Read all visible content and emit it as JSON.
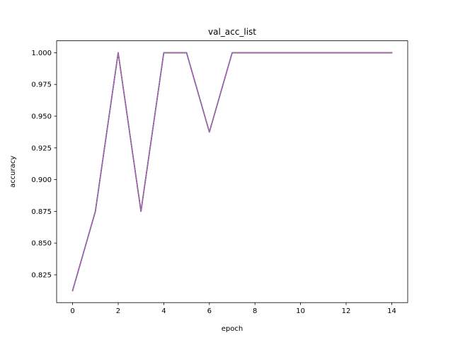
{
  "chart_data": {
    "type": "line",
    "title": "val_acc_list",
    "xlabel": "epoch",
    "ylabel": "accuracy",
    "xlim": [
      -0.7,
      14.7
    ],
    "ylim": [
      0.8031,
      1.0094
    ],
    "xticks": [
      0,
      2,
      4,
      6,
      8,
      10,
      12,
      14
    ],
    "yticks": [
      0.825,
      0.85,
      0.875,
      0.9,
      0.925,
      0.95,
      0.975,
      1.0
    ],
    "ytick_labels": [
      "0.825",
      "0.850",
      "0.875",
      "0.900",
      "0.925",
      "0.950",
      "0.975",
      "1.000"
    ],
    "grid": false,
    "series": [
      {
        "color": "#1f77b4",
        "x": [
          0,
          1,
          2,
          3,
          4,
          5,
          6,
          7,
          8,
          9,
          10,
          11,
          12,
          13,
          14
        ],
        "values": [
          0.8125,
          0.875,
          1.0,
          0.875,
          1.0,
          1.0,
          0.9375,
          1.0,
          1.0,
          1.0,
          1.0,
          1.0,
          1.0,
          1.0,
          1.0
        ]
      },
      {
        "color": "#ff7f0e",
        "x": [
          0,
          1,
          2,
          3,
          4,
          5,
          6,
          7,
          8,
          9,
          10,
          11,
          12,
          13,
          14
        ],
        "values": [
          0.8125,
          0.875,
          1.0,
          0.875,
          1.0,
          1.0,
          0.9375,
          1.0,
          1.0,
          1.0,
          1.0,
          1.0,
          1.0,
          1.0,
          1.0
        ]
      },
      {
        "color": "#2ca02c",
        "x": [
          0,
          1,
          2,
          3,
          4,
          5,
          6,
          7,
          8,
          9,
          10,
          11,
          12,
          13,
          14
        ],
        "values": [
          0.8125,
          0.875,
          1.0,
          0.875,
          1.0,
          1.0,
          0.9375,
          1.0,
          1.0,
          1.0,
          1.0,
          1.0,
          1.0,
          1.0,
          1.0
        ]
      },
      {
        "color": "#d62728",
        "x": [
          0,
          1,
          2,
          3,
          4,
          5,
          6,
          7,
          8,
          9,
          10,
          11,
          12,
          13,
          14
        ],
        "values": [
          0.8125,
          0.875,
          1.0,
          0.875,
          1.0,
          1.0,
          0.9375,
          1.0,
          1.0,
          1.0,
          1.0,
          1.0,
          1.0,
          1.0,
          1.0
        ]
      },
      {
        "color": "#9467bd",
        "x": [
          0,
          1,
          2,
          3,
          4,
          5,
          6,
          7,
          8,
          9,
          10,
          11,
          12,
          13,
          14
        ],
        "values": [
          0.8125,
          0.875,
          1.0,
          0.875,
          1.0,
          1.0,
          0.9375,
          1.0,
          1.0,
          1.0,
          1.0,
          1.0,
          1.0,
          1.0,
          1.0
        ]
      }
    ]
  }
}
